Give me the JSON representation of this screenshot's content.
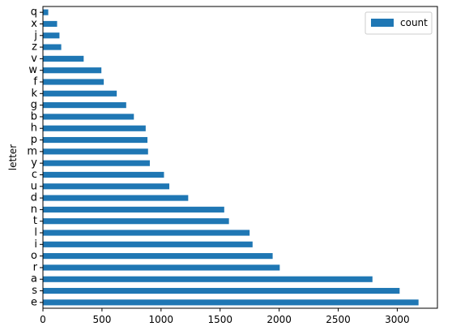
{
  "chart_data": {
    "type": "bar",
    "orientation": "horizontal",
    "ylabel": "letter",
    "xlabel": "",
    "title": "",
    "categories": [
      "e",
      "s",
      "a",
      "r",
      "o",
      "i",
      "l",
      "t",
      "n",
      "d",
      "u",
      "c",
      "y",
      "m",
      "p",
      "h",
      "b",
      "g",
      "k",
      "f",
      "w",
      "v",
      "z",
      "j",
      "x",
      "q"
    ],
    "series": [
      {
        "name": "count",
        "color": "#1f77b4",
        "values": [
          3180,
          3020,
          2790,
          2005,
          1945,
          1775,
          1750,
          1575,
          1535,
          1230,
          1070,
          1025,
          905,
          890,
          885,
          870,
          770,
          705,
          625,
          515,
          495,
          345,
          155,
          140,
          120,
          45
        ]
      }
    ],
    "xlim": [
      0,
      3340
    ],
    "xticks": [
      0,
      500,
      1000,
      1500,
      2000,
      2500,
      3000
    ],
    "grid": false,
    "legend_position": "top-right"
  }
}
